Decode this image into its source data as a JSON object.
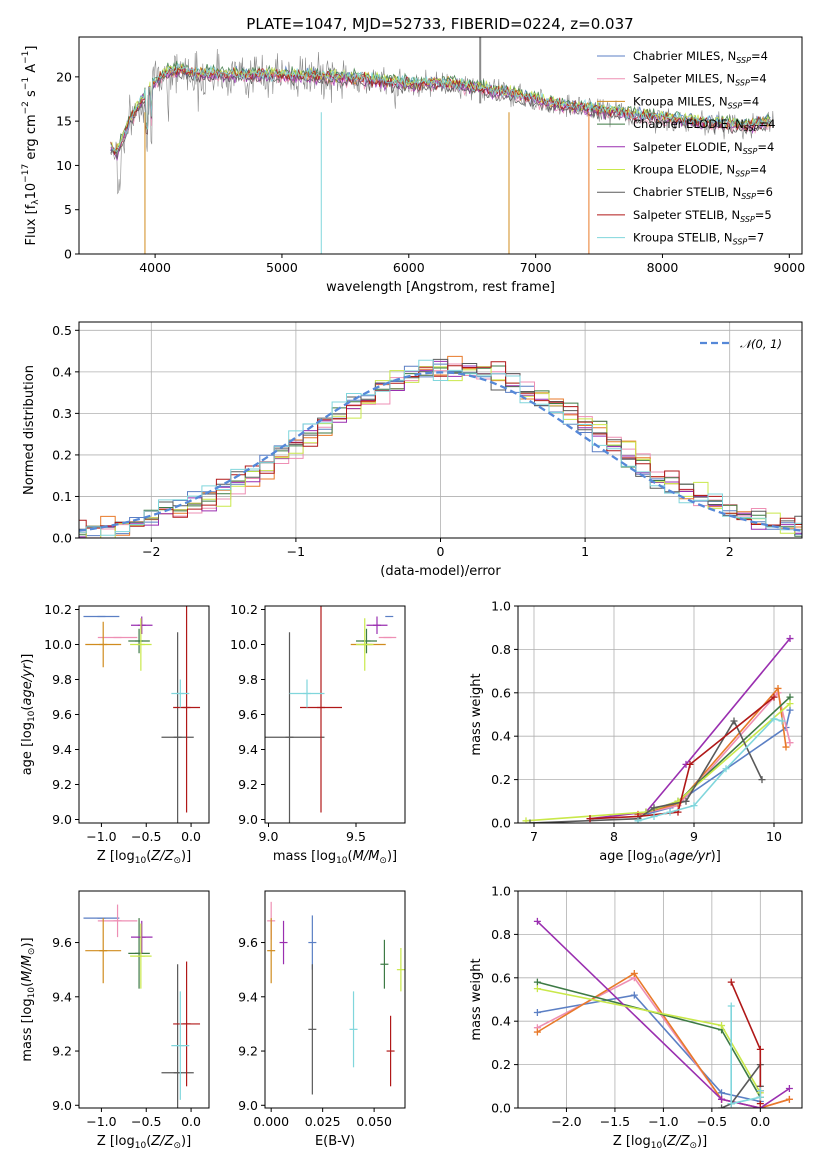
{
  "title": "PLATE=1047, MJD=52733, FIBERID=0224, z=0.037",
  "colors": {
    "Chabrier MILES": "#5b7fc4",
    "Salpeter MILES": "#ee8fb4",
    "Kroupa MILES": "#d08c1e",
    "Chabrier ELODIE": "#3d7a45",
    "Salpeter ELODIE": "#9a2fb0",
    "Kroupa ELODIE": "#c9e84a",
    "Chabrier STELIB": "#5a5a5a",
    "Salpeter STELIB": "#b01818",
    "Kroupa STELIB": "#80d6dc",
    "Kroupa MILES (lines)": "#e87a2a",
    "gaussian": "#5588d8"
  },
  "legend1": [
    {
      "name": "Chabrier MILES",
      "nssp": "4",
      "color": "#5b7fc4"
    },
    {
      "name": "Salpeter MILES",
      "nssp": "4",
      "color": "#ee8fb4"
    },
    {
      "name": "Kroupa MILES",
      "nssp": "4",
      "color": "#d08c1e"
    },
    {
      "name": "Chabrier ELODIE",
      "nssp": "4",
      "color": "#3d7a45"
    },
    {
      "name": "Salpeter ELODIE",
      "nssp": "4",
      "color": "#9a2fb0"
    },
    {
      "name": "Kroupa ELODIE",
      "nssp": "4",
      "color": "#c9e84a"
    },
    {
      "name": "Chabrier STELIB",
      "nssp": "6",
      "color": "#5a5a5a"
    },
    {
      "name": "Salpeter STELIB",
      "nssp": "5",
      "color": "#b01818"
    },
    {
      "name": "Kroupa STELIB",
      "nssp": "7",
      "color": "#80d6dc"
    }
  ],
  "legend_prefix": "N",
  "legend_sub": "SSP",
  "legend2": "𝒩(0, 1)",
  "chart_data": [
    {
      "type": "line",
      "id": "spectrum",
      "xlabel": "wavelength [Angstrom, rest frame]",
      "ylabel": "Flux [f_λ 10^-17 erg cm^-2 s^-1 A^-1]",
      "xlim": [
        3400,
        9100
      ],
      "ylim": [
        0,
        24.5
      ],
      "xticks": [
        4000,
        5000,
        6000,
        7000,
        8000,
        9000
      ],
      "yticks": [
        0,
        5,
        10,
        15,
        20
      ],
      "envelope_x": [
        3650,
        3700,
        3800,
        3900,
        4000,
        4100,
        4200,
        4300,
        4500,
        4700,
        5000,
        5300,
        5600,
        6000,
        6300,
        6600,
        6900,
        7200,
        7500,
        7800,
        8200,
        8600,
        8850
      ],
      "envelope_y": [
        12,
        11.5,
        15,
        17.5,
        19.5,
        20.5,
        20.8,
        20.3,
        20.3,
        20.2,
        20.2,
        20.0,
        19.8,
        19.2,
        19.3,
        18.6,
        17.8,
        16.8,
        16.3,
        15.7,
        15.0,
        14.5,
        14.8
      ]
    },
    {
      "type": "bar",
      "id": "residuals",
      "xlabel": "(data-model)/error",
      "ylabel": "Normed distribution",
      "xlim": [
        -2.5,
        2.5
      ],
      "ylim": [
        0,
        0.52
      ],
      "xticks": [
        -2,
        -1,
        0,
        1,
        2
      ],
      "yticks": [
        0.0,
        0.1,
        0.2,
        0.3,
        0.4,
        0.5
      ],
      "bin_width": 0.1,
      "gaussian": {
        "mu": 0,
        "sigma": 1
      }
    },
    {
      "type": "scatter",
      "id": "age_vs_Z",
      "xlabel": "Z [log10(Z/Z⊙)]",
      "ylabel": "age [log10(age/yr)]",
      "xlim": [
        -1.25,
        0.2
      ],
      "ylim": [
        8.98,
        10.22
      ],
      "xticks": [
        -1.0,
        -0.5,
        0.0
      ],
      "yticks": [
        9.0,
        9.2,
        9.4,
        9.6,
        9.8,
        10.0,
        10.2
      ],
      "points": [
        {
          "model": "Chabrier MILES",
          "x": -1.0,
          "y": 10.16,
          "xe": 0.2,
          "ye": 0.0
        },
        {
          "model": "Salpeter MILES",
          "x": -0.82,
          "y": 10.04,
          "xe": 0.22,
          "ye": 0.0
        },
        {
          "model": "Kroupa MILES",
          "x": -0.98,
          "y": 10.0,
          "xe": 0.2,
          "ye": 0.13
        },
        {
          "model": "Chabrier ELODIE",
          "x": -0.58,
          "y": 10.02,
          "xe": 0.12,
          "ye": 0.07
        },
        {
          "model": "Salpeter ELODIE",
          "x": -0.55,
          "y": 10.11,
          "xe": 0.12,
          "ye": 0.05
        },
        {
          "model": "Kroupa ELODIE",
          "x": -0.56,
          "y": 10.0,
          "xe": 0.12,
          "ye": 0.15
        },
        {
          "model": "Chabrier STELIB",
          "x": -0.15,
          "y": 9.47,
          "xe": 0.18,
          "ye": 0.6
        },
        {
          "model": "Salpeter STELIB",
          "x": -0.05,
          "y": 9.64,
          "xe": 0.15,
          "ye": 0.6
        },
        {
          "model": "Kroupa STELIB",
          "x": -0.12,
          "y": 9.72,
          "xe": 0.1,
          "ye": 0.08
        }
      ]
    },
    {
      "type": "scatter",
      "id": "age_vs_mass",
      "xlabel": "mass [log10(M/M⊙)]",
      "ylabel": "",
      "xlim": [
        8.98,
        9.78
      ],
      "ylim": [
        8.98,
        10.22
      ],
      "xticks": [
        9.0,
        9.5
      ],
      "yticks": [
        9.0,
        9.2,
        9.4,
        9.6,
        9.8,
        10.0,
        10.2
      ],
      "points": [
        {
          "model": "Chabrier MILES",
          "x": 9.69,
          "y": 10.16,
          "xe": 0.0,
          "ye": 0.0
        },
        {
          "model": "Salpeter MILES",
          "x": 9.68,
          "y": 10.04,
          "xe": 0.05,
          "ye": 0.0
        },
        {
          "model": "Kroupa MILES",
          "x": 9.57,
          "y": 10.0,
          "xe": 0.1,
          "ye": 0.0
        },
        {
          "model": "Chabrier ELODIE",
          "x": 9.56,
          "y": 10.02,
          "xe": 0.06,
          "ye": 0.07
        },
        {
          "model": "Salpeter ELODIE",
          "x": 9.62,
          "y": 10.11,
          "xe": 0.06,
          "ye": 0.05
        },
        {
          "model": "Kroupa ELODIE",
          "x": 9.55,
          "y": 10.0,
          "xe": 0.05,
          "ye": 0.15
        },
        {
          "model": "Chabrier STELIB",
          "x": 9.12,
          "y": 9.47,
          "xe": 0.2,
          "ye": 0.6
        },
        {
          "model": "Salpeter STELIB",
          "x": 9.3,
          "y": 9.64,
          "xe": 0.12,
          "ye": 0.6
        },
        {
          "model": "Kroupa STELIB",
          "x": 9.22,
          "y": 9.72,
          "xe": 0.1,
          "ye": 0.08
        }
      ]
    },
    {
      "type": "line",
      "id": "weight_vs_age",
      "xlabel": "age [log10(age/yr)]",
      "ylabel": "mass weight",
      "xlim": [
        6.8,
        10.35
      ],
      "ylim": [
        0,
        1.0
      ],
      "xticks": [
        7,
        8,
        9,
        10
      ],
      "yticks": [
        0.0,
        0.2,
        0.4,
        0.6,
        0.8,
        1.0
      ],
      "series": [
        {
          "model": "Chabrier MILES",
          "x": [
            8.3,
            8.7,
            10.15,
            10.2
          ],
          "y": [
            0.03,
            0.07,
            0.44,
            0.52
          ]
        },
        {
          "model": "Salpeter MILES",
          "x": [
            8.3,
            8.8,
            10.05,
            10.2
          ],
          "y": [
            0.04,
            0.08,
            0.6,
            0.37
          ]
        },
        {
          "model": "Kroupa MILES",
          "x": [
            8.3,
            8.8,
            10.05,
            10.15
          ],
          "y": [
            0.04,
            0.09,
            0.62,
            0.35
          ]
        },
        {
          "model": "Chabrier ELODIE",
          "x": [
            8.4,
            8.8,
            10.2
          ],
          "y": [
            0.05,
            0.1,
            0.58
          ]
        },
        {
          "model": "Salpeter ELODIE",
          "x": [
            7.7,
            8.4,
            8.9,
            10.2
          ],
          "y": [
            0.02,
            0.05,
            0.27,
            0.85
          ]
        },
        {
          "model": "Kroupa ELODIE",
          "x": [
            6.9,
            8.4,
            8.8,
            10.2
          ],
          "y": [
            0.01,
            0.05,
            0.1,
            0.55
          ]
        },
        {
          "model": "Chabrier STELIB",
          "x": [
            6.95,
            8.3,
            8.5,
            8.9,
            9.5,
            9.85
          ],
          "y": [
            0.0,
            0.02,
            0.07,
            0.1,
            0.47,
            0.2
          ]
        },
        {
          "model": "Salpeter STELIB",
          "x": [
            7.7,
            8.3,
            8.8,
            8.95,
            10.0
          ],
          "y": [
            0.02,
            0.03,
            0.05,
            0.27,
            0.58
          ]
        },
        {
          "model": "Kroupa STELIB",
          "x": [
            8.3,
            8.5,
            8.7,
            9.0,
            9.4,
            10.0,
            10.1
          ],
          "y": [
            0.01,
            0.03,
            0.05,
            0.08,
            0.25,
            0.48,
            0.47
          ]
        }
      ]
    },
    {
      "type": "scatter",
      "id": "mass_vs_Z",
      "xlabel": "Z [log10(Z/Z⊙)]",
      "ylabel": "mass [log10(M/M⊙)]",
      "xlim": [
        -1.25,
        0.2
      ],
      "ylim": [
        8.99,
        9.79
      ],
      "xticks": [
        -1.0,
        -0.5,
        0.0
      ],
      "yticks": [
        9.0,
        9.2,
        9.4,
        9.6
      ],
      "points": [
        {
          "model": "Chabrier MILES",
          "x": -1.0,
          "y": 9.69,
          "xe": 0.2,
          "ye": 0.0
        },
        {
          "model": "Salpeter MILES",
          "x": -0.82,
          "y": 9.68,
          "xe": 0.22,
          "ye": 0.06
        },
        {
          "model": "Kroupa MILES",
          "x": -0.98,
          "y": 9.57,
          "xe": 0.2,
          "ye": 0.12
        },
        {
          "model": "Chabrier ELODIE",
          "x": -0.58,
          "y": 9.56,
          "xe": 0.12,
          "ye": 0.13
        },
        {
          "model": "Salpeter ELODIE",
          "x": -0.55,
          "y": 9.62,
          "xe": 0.12,
          "ye": 0.06
        },
        {
          "model": "Kroupa ELODIE",
          "x": -0.56,
          "y": 9.55,
          "xe": 0.12,
          "ye": 0.12
        },
        {
          "model": "Chabrier STELIB",
          "x": -0.15,
          "y": 9.12,
          "xe": 0.18,
          "ye": 0.4
        },
        {
          "model": "Salpeter STELIB",
          "x": -0.05,
          "y": 9.3,
          "xe": 0.15,
          "ye": 0.23
        },
        {
          "model": "Kroupa STELIB",
          "x": -0.12,
          "y": 9.22,
          "xe": 0.1,
          "ye": 0.2
        }
      ]
    },
    {
      "type": "scatter",
      "id": "mass_vs_ebv",
      "xlabel": "E(B-V)",
      "ylabel": "",
      "xlim": [
        -0.003,
        0.065
      ],
      "ylim": [
        8.99,
        9.79
      ],
      "xticks": [
        0.0,
        0.025,
        0.05
      ],
      "xticklabels": [
        "0.000",
        "0.025",
        "0.050"
      ],
      "yticks": [
        9.0,
        9.2,
        9.4,
        9.6
      ],
      "points": [
        {
          "model": "Chabrier MILES",
          "x": 0.02,
          "y": 9.6,
          "xe": 0,
          "ye": 0.1
        },
        {
          "model": "Salpeter MILES",
          "x": 0.0,
          "y": 9.68,
          "xe": 0,
          "ye": 0.07
        },
        {
          "model": "Kroupa MILES",
          "x": 0.0,
          "y": 9.57,
          "xe": 0,
          "ye": 0.12
        },
        {
          "model": "Chabrier ELODIE",
          "x": 0.055,
          "y": 9.52,
          "xe": 0,
          "ye": 0.09
        },
        {
          "model": "Salpeter ELODIE",
          "x": 0.006,
          "y": 9.6,
          "xe": 0,
          "ye": 0.08
        },
        {
          "model": "Kroupa ELODIE",
          "x": 0.063,
          "y": 9.5,
          "xe": 0,
          "ye": 0.08
        },
        {
          "model": "Chabrier STELIB",
          "x": 0.02,
          "y": 9.28,
          "xe": 0,
          "ye": 0.24
        },
        {
          "model": "Salpeter STELIB",
          "x": 0.058,
          "y": 9.2,
          "xe": 0,
          "ye": 0.13
        },
        {
          "model": "Kroupa STELIB",
          "x": 0.04,
          "y": 9.28,
          "xe": 0,
          "ye": 0.14
        }
      ]
    },
    {
      "type": "line",
      "id": "weight_vs_Z",
      "xlabel": "Z [log10(Z/Z⊙)]",
      "ylabel": "mass weight",
      "xlim": [
        -2.5,
        0.43
      ],
      "ylim": [
        0,
        1.0
      ],
      "xticks": [
        -2.0,
        -1.5,
        -1.0,
        -0.5,
        0.0
      ],
      "yticks": [
        0.0,
        0.2,
        0.4,
        0.6,
        0.8,
        1.0
      ],
      "series": [
        {
          "model": "Chabrier MILES",
          "x": [
            -2.3,
            -1.3,
            -0.4,
            0.0
          ],
          "y": [
            0.44,
            0.52,
            0.07,
            0.03
          ]
        },
        {
          "model": "Salpeter MILES",
          "x": [
            -2.3,
            -1.3,
            -0.4,
            0.0,
            0.3
          ],
          "y": [
            0.37,
            0.6,
            0.04,
            0.0,
            0.04
          ]
        },
        {
          "model": "Kroupa MILES",
          "x": [
            -2.3,
            -1.3,
            -0.4,
            0.0,
            0.3
          ],
          "y": [
            0.35,
            0.62,
            0.04,
            0.0,
            0.04
          ]
        },
        {
          "model": "Chabrier ELODIE",
          "x": [
            -2.3,
            -0.4,
            0.0
          ],
          "y": [
            0.58,
            0.36,
            0.05
          ]
        },
        {
          "model": "Salpeter ELODIE",
          "x": [
            -2.3,
            -0.4,
            0.0,
            0.3
          ],
          "y": [
            0.86,
            0.04,
            0.0,
            0.09
          ]
        },
        {
          "model": "Kroupa ELODIE",
          "x": [
            -2.3,
            -0.4,
            0.0
          ],
          "y": [
            0.55,
            0.38,
            0.07
          ]
        },
        {
          "model": "Chabrier STELIB",
          "x": [
            -0.4,
            -0.3,
            0.0,
            0.0
          ],
          "y": [
            0.0,
            0.02,
            0.2,
            0.1
          ]
        },
        {
          "model": "Salpeter STELIB",
          "x": [
            -0.3,
            0.0,
            0.0,
            0.0
          ],
          "y": [
            0.58,
            0.27,
            0.08,
            0.02
          ]
        },
        {
          "model": "Kroupa STELIB",
          "x": [
            -0.3,
            -0.3,
            0.0,
            0.0
          ],
          "y": [
            0.47,
            0.02,
            0.05,
            0.08
          ]
        }
      ]
    }
  ]
}
